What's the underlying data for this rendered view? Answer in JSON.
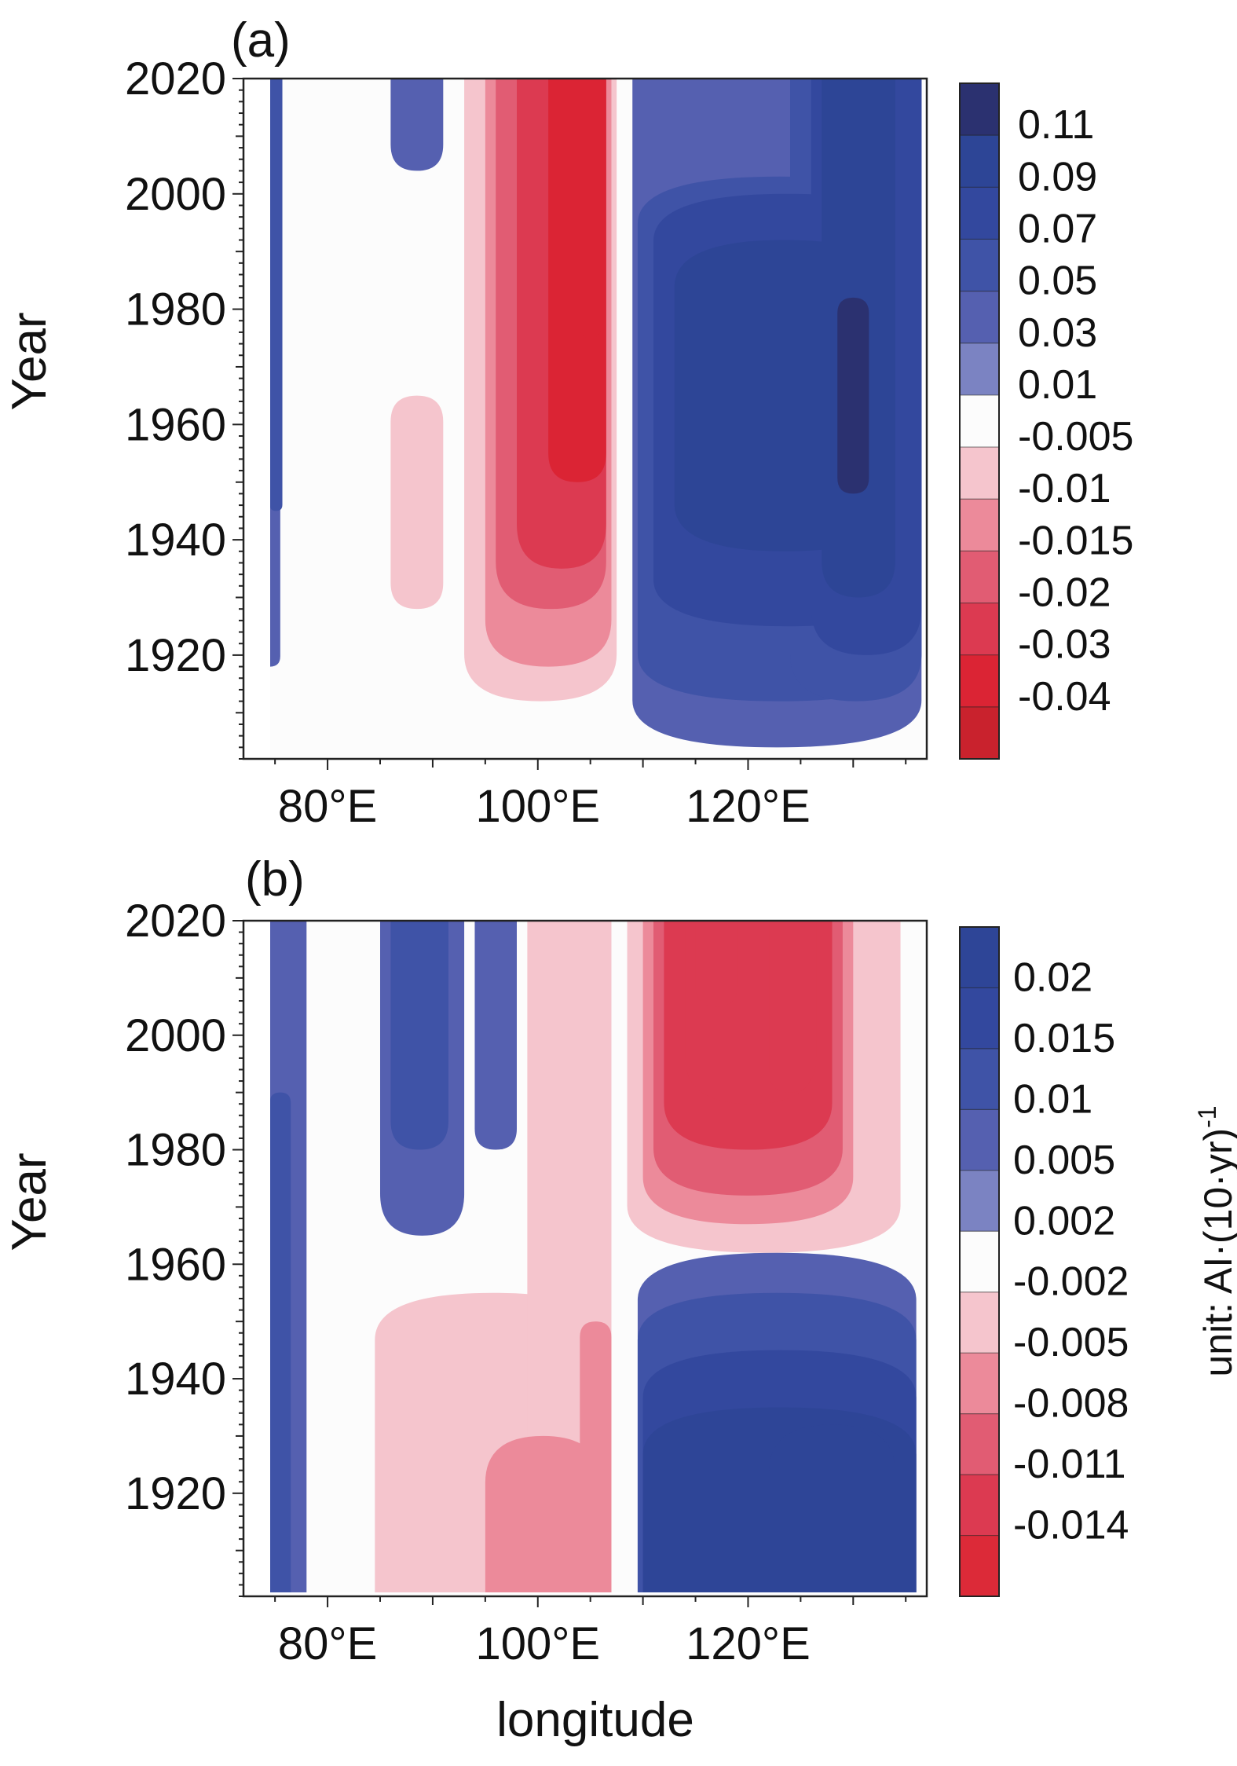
{
  "chart_data": [
    {
      "type": "heatmap",
      "panel_label": "(a)",
      "xlabel": "",
      "ylabel": "Year",
      "xlim": [
        72,
        137
      ],
      "ylim": [
        1902,
        2020
      ],
      "x_ticks": [
        {
          "v": 80,
          "label": "80°E"
        },
        {
          "v": 100,
          "label": "100°E"
        },
        {
          "v": 120,
          "label": "120°E"
        }
      ],
      "y_ticks": [
        {
          "v": 1920,
          "label": "1920"
        },
        {
          "v": 1940,
          "label": "1940"
        },
        {
          "v": 1960,
          "label": "1960"
        },
        {
          "v": 1980,
          "label": "1980"
        },
        {
          "v": 2000,
          "label": "2000"
        },
        {
          "v": 2020,
          "label": "2020"
        }
      ],
      "colorbar": {
        "boundaries": [
          "0.11",
          "0.09",
          "0.07",
          "0.05",
          "0.03",
          "0.01",
          "-0.005",
          "-0.01",
          "-0.015",
          "-0.02",
          "-0.03",
          "-0.04"
        ],
        "colors": [
          "#2b3170",
          "#2d4596",
          "#33489e",
          "#3f53a7",
          "#5560b0",
          "#7b83c2",
          "#fcfcfc",
          "#f5c5cd",
          "#ec8a9a",
          "#e15c73",
          "#dc3a51",
          "#db2434",
          "#c9222d"
        ]
      },
      "bands": [
        {
          "x": 73.5,
          "w": 2,
          "y0": 1918,
          "y1": 2020,
          "value": 0.03
        },
        {
          "x": 74.5,
          "w": 1.2,
          "y0": 1945,
          "y1": 2020,
          "value": 0.05
        },
        {
          "x": 86,
          "w": 5,
          "y0": 2004,
          "y1": 2020,
          "value": 0.03
        },
        {
          "x": 84,
          "w": 7,
          "y0": 1920,
          "y1": 1985,
          "value": -0.005
        },
        {
          "x": 92,
          "w": 16,
          "y0": 1907,
          "y1": 2020,
          "value": -0.005
        },
        {
          "x": 86,
          "w": 5,
          "y0": 1928,
          "y1": 1965,
          "value": -0.01
        },
        {
          "x": 93,
          "w": 14.5,
          "y0": 1912,
          "y1": 2020,
          "value": -0.01
        },
        {
          "x": 95,
          "w": 12,
          "y0": 1918,
          "y1": 2020,
          "value": -0.015
        },
        {
          "x": 96,
          "w": 10.5,
          "y0": 1928,
          "y1": 2020,
          "value": -0.02
        },
        {
          "x": 98,
          "w": 8.5,
          "y0": 1935,
          "y1": 2020,
          "value": -0.03
        },
        {
          "x": 101,
          "w": 5.5,
          "y0": 1950,
          "y1": 2020,
          "value": -0.04
        },
        {
          "x": 104,
          "w": 2,
          "y0": 1975,
          "y1": 2020,
          "value": -0.04
        },
        {
          "x": 109,
          "w": 27.5,
          "y0": 1904,
          "y1": 2020,
          "value": 0.03
        },
        {
          "x": 109.5,
          "w": 27,
          "y0": 1912,
          "y1": 2003,
          "value": 0.05
        },
        {
          "x": 124,
          "w": 12.5,
          "y0": 1912,
          "y1": 2020,
          "value": 0.05
        },
        {
          "x": 111,
          "w": 25.5,
          "y0": 1925,
          "y1": 2000,
          "value": 0.07
        },
        {
          "x": 126,
          "w": 10.5,
          "y0": 1920,
          "y1": 2020,
          "value": 0.07
        },
        {
          "x": 113,
          "w": 21,
          "y0": 1938,
          "y1": 1992,
          "value": 0.09
        },
        {
          "x": 127,
          "w": 7,
          "y0": 1930,
          "y1": 2020,
          "value": 0.09
        },
        {
          "x": 128.5,
          "w": 3,
          "y0": 1948,
          "y1": 1982,
          "value": 0.11
        }
      ]
    },
    {
      "type": "heatmap",
      "panel_label": "(b)",
      "xlabel": "longitude",
      "ylabel": "Year",
      "xlim": [
        72,
        137
      ],
      "ylim": [
        1902,
        2020
      ],
      "x_ticks": [
        {
          "v": 80,
          "label": "80°E"
        },
        {
          "v": 100,
          "label": "100°E"
        },
        {
          "v": 120,
          "label": "120°E"
        }
      ],
      "y_ticks": [
        {
          "v": 1920,
          "label": "1920"
        },
        {
          "v": 1940,
          "label": "1940"
        },
        {
          "v": 1960,
          "label": "1960"
        },
        {
          "v": 1980,
          "label": "1980"
        },
        {
          "v": 2000,
          "label": "2000"
        },
        {
          "v": 2020,
          "label": "2020"
        }
      ],
      "colorbar": {
        "boundaries": [
          "0.02",
          "0.015",
          "0.01",
          "0.005",
          "0.002",
          "-0.002",
          "-0.005",
          "-0.008",
          "-0.011",
          "-0.014"
        ],
        "colors": [
          "#2e4597",
          "#33489e",
          "#3f53a7",
          "#5560b0",
          "#7b83c2",
          "#fcfcfc",
          "#f5c5cd",
          "#ec8a9a",
          "#e15c73",
          "#dc3a51",
          "#dc2a38"
        ]
      },
      "colorbar_label": "unit: AI·(10·yr)",
      "colorbar_label_sup": "-1",
      "bands": [
        {
          "x": 73.5,
          "w": 4.5,
          "y0": 1902,
          "y1": 2020,
          "value": 0.005
        },
        {
          "x": 74.5,
          "w": 2,
          "y0": 1902,
          "y1": 1990,
          "value": 0.01
        },
        {
          "x": 85,
          "w": 8,
          "y0": 1965,
          "y1": 2020,
          "value": 0.005
        },
        {
          "x": 86,
          "w": 5.5,
          "y0": 1980,
          "y1": 2020,
          "value": 0.01
        },
        {
          "x": 94,
          "w": 4,
          "y0": 1980,
          "y1": 2020,
          "value": 0.005
        },
        {
          "x": 84.5,
          "w": 22.5,
          "y0": 1902,
          "y1": 1955,
          "value": -0.005
        },
        {
          "x": 99,
          "w": 8,
          "y0": 1902,
          "y1": 2020,
          "value": -0.005
        },
        {
          "x": 95,
          "w": 11,
          "y0": 1902,
          "y1": 1930,
          "value": -0.008
        },
        {
          "x": 104,
          "w": 3,
          "y0": 1902,
          "y1": 1950,
          "value": -0.008
        },
        {
          "x": 108.5,
          "w": 26,
          "y0": 1962,
          "y1": 2020,
          "value": -0.005
        },
        {
          "x": 110,
          "w": 20,
          "y0": 1967,
          "y1": 2020,
          "value": -0.008
        },
        {
          "x": 111,
          "w": 18,
          "y0": 1972,
          "y1": 2020,
          "value": -0.011
        },
        {
          "x": 112,
          "w": 16,
          "y0": 1980,
          "y1": 2020,
          "value": -0.014
        },
        {
          "x": 114,
          "w": 12.5,
          "y0": 1988,
          "y1": 2020,
          "value": -0.014
        },
        {
          "x": 115,
          "w": 4,
          "y0": 2005,
          "y1": 2020,
          "value": -0.014
        },
        {
          "x": 122,
          "w": 4,
          "y0": 1990,
          "y1": 2020,
          "value": -0.014
        },
        {
          "x": 109.5,
          "w": 26.5,
          "y0": 1902,
          "y1": 1962,
          "value": 0.005
        },
        {
          "x": 109.5,
          "w": 26.5,
          "y0": 1902,
          "y1": 1955,
          "value": 0.01
        },
        {
          "x": 110,
          "w": 26,
          "y0": 1902,
          "y1": 1945,
          "value": 0.015
        },
        {
          "x": 110,
          "w": 26,
          "y0": 1902,
          "y1": 1935,
          "value": 0.02
        },
        {
          "x": 122,
          "w": 12,
          "y0": 1902,
          "y1": 1932,
          "value": 0.02
        }
      ]
    }
  ]
}
